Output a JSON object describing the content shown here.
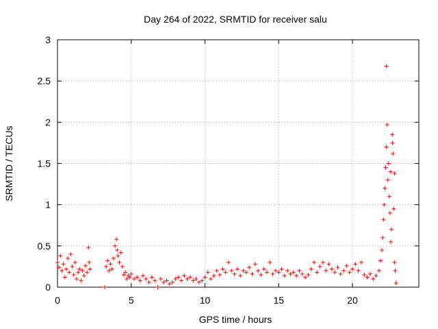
{
  "chart_data": {
    "type": "scatter",
    "title": "Day 264 of 2022, SRMTID for receiver salu",
    "xlabel": "GPS time / hours",
    "ylabel": "SRMTID / TECUs",
    "xlim": [
      0,
      24.5
    ],
    "ylim": [
      0,
      3
    ],
    "xticks": [
      0,
      5,
      10,
      15,
      20
    ],
    "xtick_labels": [
      "0",
      "5",
      "10",
      "15",
      "20"
    ],
    "yticks": [
      0,
      0.5,
      1,
      1.5,
      2,
      2.5,
      3
    ],
    "ytick_labels": [
      "0",
      "0.5",
      "1",
      "1.5",
      "2",
      "2.5",
      "3"
    ],
    "grid": true,
    "marker": "+",
    "series_color": "#ff0000",
    "series": [
      {
        "name": "SRMTID",
        "points": [
          [
            0.0,
            0.3
          ],
          [
            0.1,
            0.24
          ],
          [
            0.2,
            0.38
          ],
          [
            0.3,
            0.2
          ],
          [
            0.4,
            0.28
          ],
          [
            0.5,
            0.12
          ],
          [
            0.6,
            0.22
          ],
          [
            0.7,
            0.35
          ],
          [
            0.8,
            0.18
          ],
          [
            0.9,
            0.4
          ],
          [
            1.0,
            0.25
          ],
          [
            1.1,
            0.15
          ],
          [
            1.2,
            0.3
          ],
          [
            1.3,
            0.1
          ],
          [
            1.4,
            0.18
          ],
          [
            1.5,
            0.22
          ],
          [
            1.6,
            0.08
          ],
          [
            1.7,
            0.2
          ],
          [
            1.8,
            0.14
          ],
          [
            1.9,
            0.26
          ],
          [
            2.0,
            0.18
          ],
          [
            2.1,
            0.48
          ],
          [
            2.15,
            0.3
          ],
          [
            2.2,
            0.22
          ],
          [
            3.2,
            0.0
          ],
          [
            3.3,
            0.25
          ],
          [
            3.4,
            0.32
          ],
          [
            3.5,
            0.2
          ],
          [
            3.6,
            0.28
          ],
          [
            3.7,
            0.22
          ],
          [
            3.8,
            0.35
          ],
          [
            3.9,
            0.5
          ],
          [
            4.0,
            0.58
          ],
          [
            4.05,
            0.45
          ],
          [
            4.1,
            0.38
          ],
          [
            4.2,
            0.3
          ],
          [
            4.3,
            0.42
          ],
          [
            4.4,
            0.25
          ],
          [
            4.5,
            0.15
          ],
          [
            4.6,
            0.18
          ],
          [
            4.7,
            0.1
          ],
          [
            4.8,
            0.14
          ],
          [
            4.9,
            0.12
          ],
          [
            5.0,
            0.16
          ],
          [
            5.2,
            0.1
          ],
          [
            5.4,
            0.12
          ],
          [
            5.6,
            0.08
          ],
          [
            5.8,
            0.14
          ],
          [
            6.0,
            0.1
          ],
          [
            6.2,
            0.06
          ],
          [
            6.4,
            0.12
          ],
          [
            6.6,
            0.08
          ],
          [
            6.8,
            0.0
          ],
          [
            7.0,
            0.1
          ],
          [
            7.2,
            0.06
          ],
          [
            7.4,
            0.08
          ],
          [
            7.6,
            0.04
          ],
          [
            7.8,
            0.06
          ],
          [
            8.0,
            0.1
          ],
          [
            8.2,
            0.12
          ],
          [
            8.4,
            0.08
          ],
          [
            8.6,
            0.14
          ],
          [
            8.8,
            0.1
          ],
          [
            9.0,
            0.12
          ],
          [
            9.2,
            0.08
          ],
          [
            9.4,
            0.1
          ],
          [
            9.6,
            0.06
          ],
          [
            9.8,
            0.08
          ],
          [
            10.0,
            0.12
          ],
          [
            10.2,
            0.18
          ],
          [
            10.4,
            0.1
          ],
          [
            10.6,
            0.14
          ],
          [
            10.8,
            0.2
          ],
          [
            11.0,
            0.15
          ],
          [
            11.2,
            0.22
          ],
          [
            11.4,
            0.18
          ],
          [
            11.6,
            0.3
          ],
          [
            11.8,
            0.2
          ],
          [
            12.0,
            0.16
          ],
          [
            12.2,
            0.22
          ],
          [
            12.4,
            0.14
          ],
          [
            12.6,
            0.2
          ],
          [
            12.8,
            0.18
          ],
          [
            13.0,
            0.24
          ],
          [
            13.2,
            0.16
          ],
          [
            13.4,
            0.28
          ],
          [
            13.6,
            0.2
          ],
          [
            13.8,
            0.15
          ],
          [
            14.0,
            0.22
          ],
          [
            14.2,
            0.18
          ],
          [
            14.4,
            0.3
          ],
          [
            14.6,
            0.16
          ],
          [
            14.8,
            0.2
          ],
          [
            15.0,
            0.18
          ],
          [
            15.2,
            0.22
          ],
          [
            15.4,
            0.14
          ],
          [
            15.6,
            0.2
          ],
          [
            15.8,
            0.16
          ],
          [
            16.0,
            0.18
          ],
          [
            16.2,
            0.14
          ],
          [
            16.4,
            0.2
          ],
          [
            16.6,
            0.16
          ],
          [
            16.8,
            0.12
          ],
          [
            17.0,
            0.15
          ],
          [
            17.2,
            0.22
          ],
          [
            17.4,
            0.3
          ],
          [
            17.6,
            0.18
          ],
          [
            17.8,
            0.25
          ],
          [
            18.0,
            0.3
          ],
          [
            18.2,
            0.2
          ],
          [
            18.4,
            0.28
          ],
          [
            18.6,
            0.22
          ],
          [
            18.8,
            0.18
          ],
          [
            19.0,
            0.24
          ],
          [
            19.2,
            0.16
          ],
          [
            19.4,
            0.2
          ],
          [
            19.6,
            0.26
          ],
          [
            19.8,
            0.18
          ],
          [
            20.0,
            0.22
          ],
          [
            20.2,
            0.28
          ],
          [
            20.4,
            0.2
          ],
          [
            20.6,
            0.3
          ],
          [
            20.8,
            0.15
          ],
          [
            21.0,
            0.12
          ],
          [
            21.2,
            0.16
          ],
          [
            21.4,
            0.1
          ],
          [
            21.6,
            0.14
          ],
          [
            21.8,
            0.2
          ],
          [
            21.9,
            0.32
          ],
          [
            22.0,
            0.45
          ],
          [
            22.05,
            0.6
          ],
          [
            22.1,
            0.82
          ],
          [
            22.15,
            1.0
          ],
          [
            22.2,
            1.2
          ],
          [
            22.25,
            1.45
          ],
          [
            22.3,
            1.7
          ],
          [
            22.3,
            2.68
          ],
          [
            22.35,
            1.97
          ],
          [
            22.4,
            1.3
          ],
          [
            22.45,
            1.5
          ],
          [
            22.5,
            1.1
          ],
          [
            22.55,
            0.9
          ],
          [
            22.6,
            1.4
          ],
          [
            22.65,
            0.7
          ],
          [
            22.7,
            1.85
          ],
          [
            22.75,
            1.62
          ],
          [
            22.8,
            0.95
          ],
          [
            22.85,
            0.3
          ],
          [
            22.9,
            0.2
          ],
          [
            22.95,
            0.05
          ],
          [
            22.85,
            1.38
          ],
          [
            22.72,
            1.75
          ],
          [
            22.6,
            0.55
          ]
        ]
      }
    ]
  }
}
